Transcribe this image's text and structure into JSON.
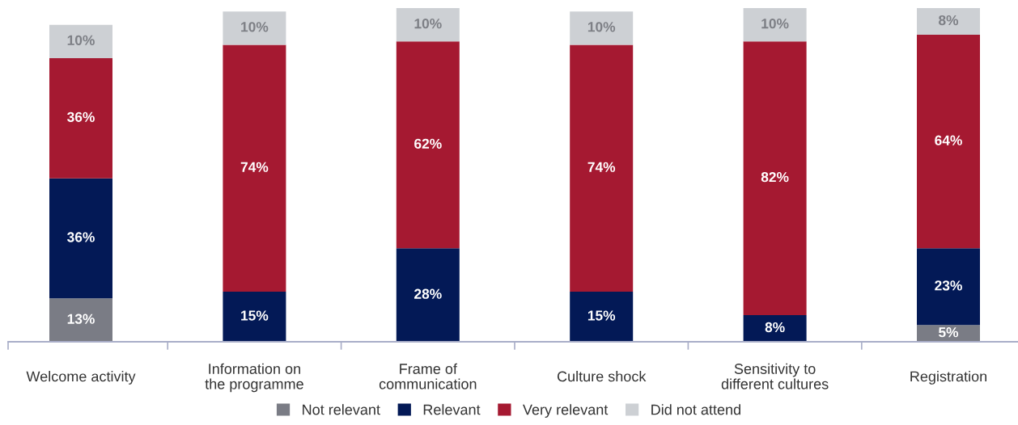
{
  "chart_data": {
    "type": "bar",
    "stacked": true,
    "categories": [
      "Welcome activity",
      "Information on\nthe programme",
      "Frame of\ncommunication",
      "Culture shock",
      "Sensitivity to\ndifferent cultures",
      "Registration"
    ],
    "series": [
      {
        "name": "Not relevant",
        "color": "#7a7c85",
        "values": [
          13,
          null,
          null,
          null,
          null,
          5
        ],
        "value_labels": [
          "13%",
          null,
          null,
          null,
          null,
          "5%"
        ]
      },
      {
        "name": "Relevant",
        "color": "#031956",
        "values": [
          36,
          15,
          28,
          15,
          8,
          23
        ],
        "value_labels": [
          "36%",
          "15%",
          "28%",
          "15%",
          "8%",
          "23%"
        ]
      },
      {
        "name": "Very relevant",
        "color": "#a51931",
        "values": [
          36,
          74,
          62,
          74,
          82,
          64
        ],
        "value_labels": [
          "36%",
          "74%",
          "62%",
          "74%",
          "82%",
          "64%"
        ]
      },
      {
        "name": "Did not attend",
        "color": "#cdd0d4",
        "values": [
          10,
          10,
          10,
          10,
          10,
          8
        ],
        "value_labels": [
          "10%",
          "10%",
          "10%",
          "10%",
          "10%",
          "8%"
        ]
      }
    ],
    "ylim": [
      0,
      100
    ],
    "tick_labels": "x",
    "legend": "bottom"
  }
}
